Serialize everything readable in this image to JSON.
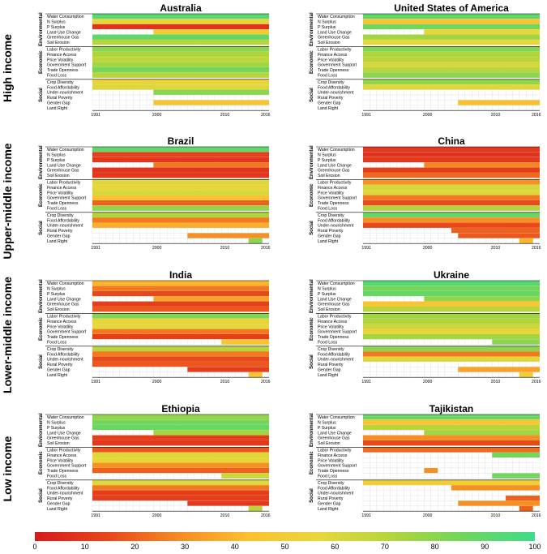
{
  "colors": {
    "scale": [
      "#d7191c",
      "#e8451a",
      "#f58a22",
      "#fcc12d",
      "#e7d83a",
      "#b3d53a",
      "#6ed65b",
      "#3ddc8a"
    ],
    "empty": "#ffffff",
    "grid": "#d9d9d9"
  },
  "income_groups": [
    {
      "label": "High income"
    },
    {
      "label": "Upper-middle income"
    },
    {
      "label": "Lower-middle income"
    },
    {
      "label": "Low income"
    }
  ],
  "legend": {
    "ticks": [
      "0",
      "10",
      "20",
      "30",
      "40",
      "50",
      "60",
      "70",
      "80",
      "90",
      "100"
    ],
    "min": 0,
    "max": 100
  },
  "chart_data": {
    "type": "heatmap",
    "years": [
      1991,
      1992,
      1993,
      1994,
      1995,
      1996,
      1997,
      1998,
      1999,
      2000,
      2001,
      2002,
      2003,
      2004,
      2005,
      2006,
      2007,
      2008,
      2009,
      2010,
      2011,
      2012,
      2013,
      2014,
      2015,
      2016
    ],
    "year_tick_labels": [
      "1991",
      "2000",
      "2010",
      "2016"
    ],
    "indicator_groups": [
      {
        "name": "Environmental",
        "indicators": [
          "Water Consumption",
          "N Surplus",
          "P Surplus",
          "Land Use Change",
          "Greenhouse Gas",
          "Soil Erosion"
        ]
      },
      {
        "name": "Economic",
        "indicators": [
          "Labor Productivity",
          "Finance Access",
          "Price Volatility",
          "Government Support",
          "Trade Openness",
          "Food Loss"
        ]
      },
      {
        "name": "Social",
        "indicators": [
          "Crop Diversity",
          "Food Affordability",
          "Under-nourishment",
          "Rural Poverty",
          "Gender Gap",
          "Land Right"
        ]
      }
    ],
    "countries": [
      {
        "name": "Australia",
        "income_group": 0,
        "rows": [
          {
            "start": 1991,
            "end": 2016,
            "value": 92
          },
          {
            "start": 1991,
            "end": 2016,
            "value": 55
          },
          {
            "start": 1991,
            "end": 2016,
            "value": 8
          },
          {
            "start": 2000,
            "end": 2016,
            "value": 48
          },
          {
            "start": 1991,
            "end": 2016,
            "value": 90
          },
          {
            "start": 1991,
            "end": 2016,
            "value": 70
          },
          {
            "start": 1991,
            "end": 2016,
            "value": 80
          },
          {
            "start": 1991,
            "end": 2016,
            "value": 72
          },
          {
            "start": 1991,
            "end": 2016,
            "value": 68
          },
          {
            "start": 1991,
            "end": 2016,
            "value": 75
          },
          {
            "start": 1991,
            "end": 2016,
            "value": 85
          },
          {
            "start": 1991,
            "end": 2016,
            "value": 70
          },
          {
            "start": 1991,
            "end": 2016,
            "value": 55
          },
          {
            "start": 1991,
            "end": 2016,
            "value": 60
          },
          {
            "start": 2000,
            "end": 2016,
            "value": 80
          },
          {
            "start": null,
            "end": null,
            "value": null
          },
          {
            "start": 2000,
            "end": 2016,
            "value": 45
          },
          {
            "start": null,
            "end": null,
            "value": null
          }
        ]
      },
      {
        "name": "United States of America",
        "income_group": 0,
        "rows": [
          {
            "start": 1991,
            "end": 2016,
            "value": 90
          },
          {
            "start": 1991,
            "end": 2016,
            "value": 45
          },
          {
            "start": 1991,
            "end": 2016,
            "value": 85
          },
          {
            "start": 2000,
            "end": 2016,
            "value": 55
          },
          {
            "start": 1991,
            "end": 2016,
            "value": 75
          },
          {
            "start": 1991,
            "end": 2016,
            "value": 58
          },
          {
            "start": 1991,
            "end": 2016,
            "value": 82
          },
          {
            "start": 1991,
            "end": 2016,
            "value": 72
          },
          {
            "start": 1991,
            "end": 2016,
            "value": 70
          },
          {
            "start": 1991,
            "end": 2016,
            "value": 62
          },
          {
            "start": 1991,
            "end": 2016,
            "value": 70
          },
          {
            "start": 1991,
            "end": 2016,
            "value": 80
          },
          {
            "start": 1991,
            "end": 2016,
            "value": 78
          },
          {
            "start": 1991,
            "end": 2016,
            "value": 60
          },
          {
            "start": null,
            "end": null,
            "value": null
          },
          {
            "start": null,
            "end": null,
            "value": null
          },
          {
            "start": 2005,
            "end": 2016,
            "value": 42
          },
          {
            "start": null,
            "end": null,
            "value": null
          }
        ]
      },
      {
        "name": "Brazil",
        "income_group": 1,
        "rows": [
          {
            "start": 1991,
            "end": 2016,
            "value": 90
          },
          {
            "start": 1991,
            "end": 2016,
            "value": 12
          },
          {
            "start": 1991,
            "end": 2016,
            "value": 10
          },
          {
            "start": 2000,
            "end": 2016,
            "value": 25
          },
          {
            "start": 1991,
            "end": 2016,
            "value": 8
          },
          {
            "start": 1991,
            "end": 2016,
            "value": 10
          },
          {
            "start": 1991,
            "end": 2016,
            "value": 60
          },
          {
            "start": 1991,
            "end": 2016,
            "value": 55
          },
          {
            "start": 1991,
            "end": 2016,
            "value": 62
          },
          {
            "start": 1991,
            "end": 2016,
            "value": 45
          },
          {
            "start": 1991,
            "end": 2016,
            "value": 20
          },
          {
            "start": 1991,
            "end": 2016,
            "value": 78
          },
          {
            "start": 1991,
            "end": 2016,
            "value": 72
          },
          {
            "start": 1991,
            "end": 2016,
            "value": 25
          },
          {
            "start": 1991,
            "end": 2016,
            "value": 38
          },
          {
            "start": null,
            "end": null,
            "value": null
          },
          {
            "start": 2005,
            "end": 2016,
            "value": 30
          },
          {
            "start": 2014,
            "end": 2015,
            "value": 80
          }
        ]
      },
      {
        "name": "China",
        "income_group": 1,
        "rows": [
          {
            "start": 1991,
            "end": 2016,
            "value": 10
          },
          {
            "start": 1991,
            "end": 2016,
            "value": 8
          },
          {
            "start": 1991,
            "end": 2016,
            "value": 10
          },
          {
            "start": 2000,
            "end": 2016,
            "value": 28
          },
          {
            "start": 1991,
            "end": 2016,
            "value": 12
          },
          {
            "start": 1991,
            "end": 2016,
            "value": 22
          },
          {
            "start": 1991,
            "end": 2016,
            "value": 30
          },
          {
            "start": 1991,
            "end": 2016,
            "value": 62
          },
          {
            "start": 1991,
            "end": 2016,
            "value": 60
          },
          {
            "start": 1991,
            "end": 2016,
            "value": 25
          },
          {
            "start": 1991,
            "end": 2016,
            "value": 15
          },
          {
            "start": 1991,
            "end": 2016,
            "value": 72
          },
          {
            "start": 1991,
            "end": 2016,
            "value": 88
          },
          {
            "start": 1991,
            "end": 2016,
            "value": 30
          },
          {
            "start": 1991,
            "end": 2016,
            "value": 15
          },
          {
            "start": 2004,
            "end": 2016,
            "value": 20
          },
          {
            "start": 2005,
            "end": 2016,
            "value": 18
          },
          {
            "start": 2014,
            "end": 2015,
            "value": 40
          }
        ]
      },
      {
        "name": "India",
        "income_group": 2,
        "rows": [
          {
            "start": 1991,
            "end": 2016,
            "value": 40
          },
          {
            "start": 1991,
            "end": 2016,
            "value": 25
          },
          {
            "start": 1991,
            "end": 2016,
            "value": 15
          },
          {
            "start": 2000,
            "end": 2016,
            "value": 35
          },
          {
            "start": 1991,
            "end": 2016,
            "value": 12
          },
          {
            "start": 1991,
            "end": 2016,
            "value": 18
          },
          {
            "start": 1991,
            "end": 2016,
            "value": 82
          },
          {
            "start": 1991,
            "end": 2016,
            "value": 55
          },
          {
            "start": 1991,
            "end": 2016,
            "value": 58
          },
          {
            "start": 1991,
            "end": 2016,
            "value": 25
          },
          {
            "start": 1991,
            "end": 2016,
            "value": 12
          },
          {
            "start": 2010,
            "end": 2016,
            "value": 45
          },
          {
            "start": 1991,
            "end": 2016,
            "value": 70
          },
          {
            "start": 1991,
            "end": 2016,
            "value": 25
          },
          {
            "start": 1991,
            "end": 2016,
            "value": 15
          },
          {
            "start": 1991,
            "end": 2016,
            "value": 18
          },
          {
            "start": 2005,
            "end": 2016,
            "value": 12
          },
          {
            "start": 2014,
            "end": 2015,
            "value": 45
          }
        ]
      },
      {
        "name": "Ukraine",
        "income_group": 2,
        "rows": [
          {
            "start": 1991,
            "end": 2016,
            "value": 92
          },
          {
            "start": 1991,
            "end": 2016,
            "value": 85
          },
          {
            "start": 1991,
            "end": 2016,
            "value": 88
          },
          {
            "start": 2000,
            "end": 2016,
            "value": 78
          },
          {
            "start": 1991,
            "end": 2016,
            "value": 45
          },
          {
            "start": 1991,
            "end": 2016,
            "value": 70
          },
          {
            "start": 1991,
            "end": 2016,
            "value": 75
          },
          {
            "start": 1991,
            "end": 2016,
            "value": 72
          },
          {
            "start": 1991,
            "end": 2016,
            "value": 65
          },
          {
            "start": 1991,
            "end": 2016,
            "value": 55
          },
          {
            "start": 1991,
            "end": 2016,
            "value": 75
          },
          {
            "start": 2010,
            "end": 2016,
            "value": 80
          },
          {
            "start": 1991,
            "end": 2016,
            "value": 80
          },
          {
            "start": 1991,
            "end": 2016,
            "value": 25
          },
          {
            "start": 1991,
            "end": 2016,
            "value": 60
          },
          {
            "start": null,
            "end": null,
            "value": null
          },
          {
            "start": 2005,
            "end": 2016,
            "value": 35
          },
          {
            "start": 2014,
            "end": 2015,
            "value": 50
          }
        ]
      },
      {
        "name": "Ethiopia",
        "income_group": 3,
        "rows": [
          {
            "start": 1991,
            "end": 2016,
            "value": 78
          },
          {
            "start": 1991,
            "end": 2016,
            "value": 85
          },
          {
            "start": 1991,
            "end": 2016,
            "value": 88
          },
          {
            "start": 2000,
            "end": 2016,
            "value": 75
          },
          {
            "start": 1991,
            "end": 2016,
            "value": 12
          },
          {
            "start": 1991,
            "end": 2016,
            "value": 10
          },
          {
            "start": 1991,
            "end": 2016,
            "value": 18
          },
          {
            "start": 1991,
            "end": 2016,
            "value": 60
          },
          {
            "start": 1991,
            "end": 2016,
            "value": 55
          },
          {
            "start": 1991,
            "end": 2016,
            "value": 30
          },
          {
            "start": 1991,
            "end": 2016,
            "value": 20
          },
          {
            "start": 2010,
            "end": 2016,
            "value": 65
          },
          {
            "start": 1991,
            "end": 2016,
            "value": 60
          },
          {
            "start": 1991,
            "end": 2016,
            "value": 25
          },
          {
            "start": 1991,
            "end": 2016,
            "value": 12
          },
          {
            "start": 1991,
            "end": 2016,
            "value": 12
          },
          {
            "start": 2005,
            "end": 2016,
            "value": 10
          },
          {
            "start": 2014,
            "end": 2015,
            "value": 70
          }
        ]
      },
      {
        "name": "Tajikistan",
        "income_group": 3,
        "rows": [
          {
            "start": 1991,
            "end": 2016,
            "value": 88
          },
          {
            "start": 1991,
            "end": 2016,
            "value": 45
          },
          {
            "start": 1991,
            "end": 2016,
            "value": 70
          },
          {
            "start": 2000,
            "end": 2016,
            "value": 75
          },
          {
            "start": 1991,
            "end": 2016,
            "value": 30
          },
          {
            "start": 1991,
            "end": 2016,
            "value": 15
          },
          {
            "start": 1991,
            "end": 2016,
            "value": 22
          },
          {
            "start": 2010,
            "end": 2016,
            "value": 85
          },
          {
            "start": null,
            "end": null,
            "value": null
          },
          {
            "start": null,
            "end": null,
            "value": null
          },
          {
            "start": 2000,
            "end": 2001,
            "value": 30
          },
          {
            "start": 2010,
            "end": 2016,
            "value": 85
          },
          {
            "start": 1991,
            "end": 2016,
            "value": 50
          },
          {
            "start": 2004,
            "end": 2016,
            "value": 30
          },
          {
            "start": null,
            "end": null,
            "value": null
          },
          {
            "start": 2012,
            "end": 2016,
            "value": 20
          },
          {
            "start": 2005,
            "end": 2016,
            "value": 30
          },
          {
            "start": 2014,
            "end": 2015,
            "value": 20
          }
        ]
      }
    ]
  }
}
